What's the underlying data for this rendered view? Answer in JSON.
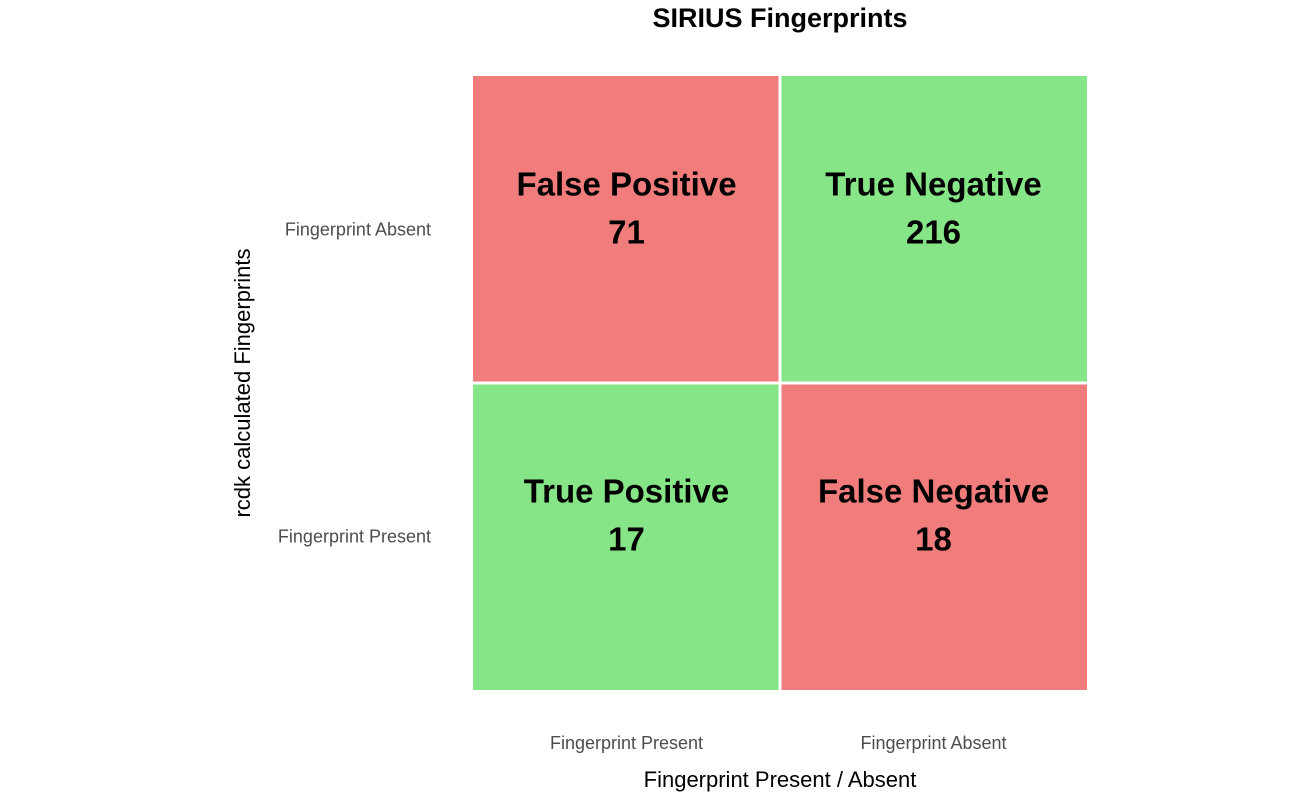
{
  "chart_data": {
    "type": "heatmap",
    "title": "SIRIUS Fingerprints",
    "xlabel": "Fingerprint Present / Absent",
    "ylabel": "rcdk calculated Fingerprints",
    "x_categories": [
      "Fingerprint Present",
      "Fingerprint Absent"
    ],
    "y_categories": [
      "Fingerprint Absent",
      "Fingerprint Present"
    ],
    "cells": [
      {
        "x": "Fingerprint Present",
        "y": "Fingerprint Absent",
        "label": "False Positive",
        "value": 71,
        "color": "#f17c7c"
      },
      {
        "x": "Fingerprint Absent",
        "y": "Fingerprint Absent",
        "label": "True Negative",
        "value": 216,
        "color": "#86e586"
      },
      {
        "x": "Fingerprint Present",
        "y": "Fingerprint Present",
        "label": "True Positive",
        "value": 17,
        "color": "#86e586"
      },
      {
        "x": "Fingerprint Absent",
        "y": "Fingerprint Present",
        "label": "False Negative",
        "value": 18,
        "color": "#f17c7c"
      }
    ],
    "legend": "none",
    "grid": false
  }
}
